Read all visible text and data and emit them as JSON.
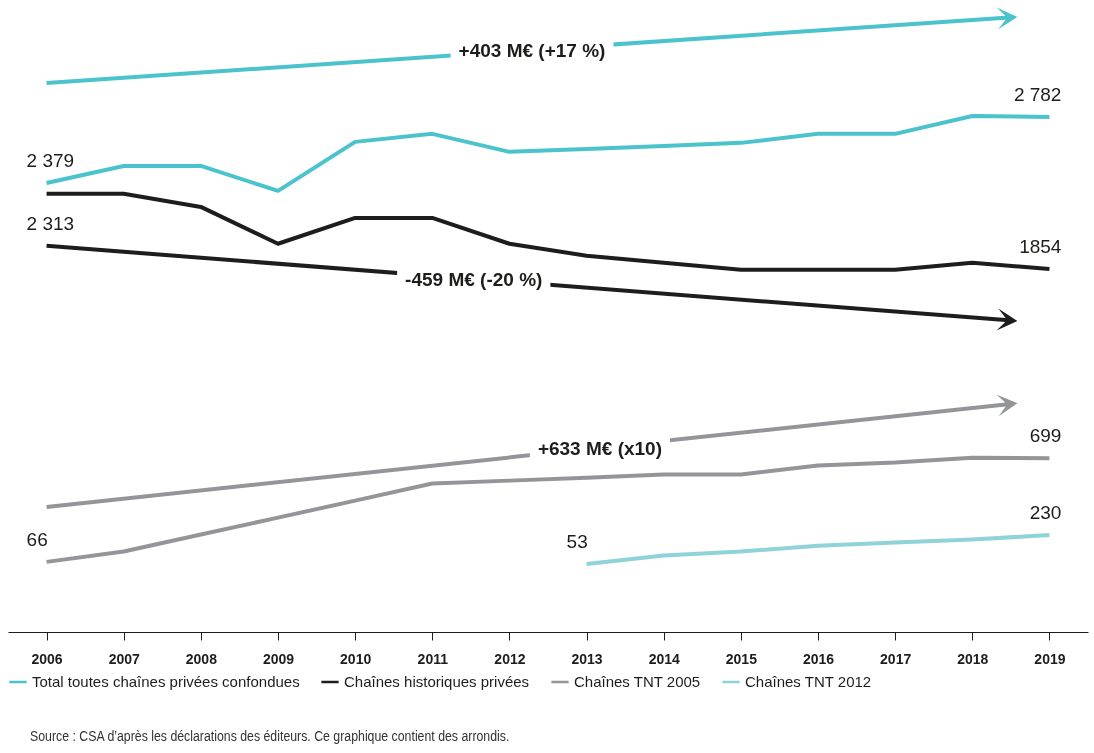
{
  "chart_data": {
    "type": "line",
    "categories": [
      "2006",
      "2007",
      "2008",
      "2009",
      "2010",
      "2011",
      "2012",
      "2013",
      "2014",
      "2015",
      "2016",
      "2017",
      "2018",
      "2019"
    ],
    "series": [
      {
        "name": "Total toutes chaînes privées confondues",
        "color": "#4bc3cc",
        "values": [
          2379,
          2483,
          2483,
          2331,
          2630,
          2679,
          2569,
          2587,
          2605,
          2624,
          2679,
          2679,
          2788,
          2782
        ],
        "value_labels": [
          "2 379",
          null,
          null,
          null,
          null,
          null,
          null,
          null,
          null,
          null,
          null,
          null,
          null,
          "2 782"
        ]
      },
      {
        "name": "Chaînes historiques privées",
        "color": "#1d1d1b",
        "values": [
          2313,
          2313,
          2233,
          2008,
          2166,
          2166,
          2008,
          1935,
          1892,
          1849,
          1849,
          1849,
          1892,
          1854
        ],
        "value_labels": [
          "2 313",
          null,
          null,
          null,
          null,
          null,
          null,
          null,
          null,
          null,
          null,
          null,
          null,
          "1854"
        ]
      },
      {
        "name": "Chaînes TNT 2005",
        "color": "#939598",
        "values": [
          66,
          129,
          233,
          336,
          440,
          544,
          562,
          580,
          599,
          599,
          654,
          672,
          702,
          699
        ],
        "value_labels": [
          "66",
          null,
          null,
          null,
          null,
          null,
          null,
          null,
          null,
          null,
          null,
          null,
          null,
          "699"
        ]
      },
      {
        "name": "Chaînes TNT 2012",
        "color": "#8fd3d8",
        "values": [
          null,
          null,
          null,
          null,
          null,
          null,
          null,
          53,
          105,
          129,
          165,
          184,
          202,
          230
        ],
        "value_labels": [
          null,
          null,
          null,
          null,
          null,
          null,
          null,
          "53",
          null,
          null,
          null,
          null,
          null,
          "230"
        ]
      }
    ],
    "tick_labels": "x",
    "legend": "bottom",
    "marker": "none",
    "line_style": "solid",
    "grid": false,
    "annotations": [
      "+403 M€ (+17 %)",
      "-459 M€ (-20 %)",
      "+633 M€ (x10)",
      "Source : CSA d’après les déclarations des éditeurs. Ce graphique contient des arrondis."
    ]
  }
}
